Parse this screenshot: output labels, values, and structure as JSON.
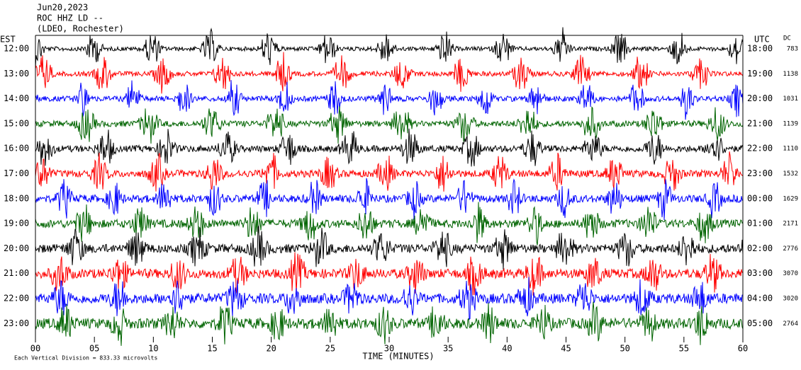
{
  "header": {
    "date": "Jun20,2023",
    "station": "ROC HHZ LD --",
    "location": "(LDEO, Rochester)"
  },
  "left_label": "EST",
  "right_label": "UTC",
  "dc_label": "DC",
  "rows": [
    {
      "est": "12:00",
      "utc": "18:00",
      "dc": 783
    },
    {
      "est": "13:00",
      "utc": "19:00",
      "dc": 1138
    },
    {
      "est": "14:00",
      "utc": "20:00",
      "dc": 1031
    },
    {
      "est": "15:00",
      "utc": "21:00",
      "dc": 1139
    },
    {
      "est": "16:00",
      "utc": "22:00",
      "dc": 1110
    },
    {
      "est": "17:00",
      "utc": "23:00",
      "dc": 1532
    },
    {
      "est": "18:00",
      "utc": "00:00",
      "dc": 1629
    },
    {
      "est": "19:00",
      "utc": "01:00",
      "dc": 2171
    },
    {
      "est": "20:00",
      "utc": "02:00",
      "dc": 2776
    },
    {
      "est": "21:00",
      "utc": "03:00",
      "dc": 3070
    },
    {
      "est": "22:00",
      "utc": "04:00",
      "dc": 3020
    },
    {
      "est": "23:00",
      "utc": "05:00",
      "dc": 2764
    }
  ],
  "x_axis": {
    "label": "TIME (MINUTES)",
    "lim": [
      0,
      60
    ],
    "ticks": [
      {
        "value": 0,
        "label": "00"
      },
      {
        "value": 5,
        "label": "05"
      },
      10,
      15,
      20,
      25,
      30,
      35,
      40,
      45,
      50,
      55,
      60
    ]
  },
  "footer": "Each Vertical Division =  833.33 microvolts",
  "trace_colors": [
    "#000000",
    "#ff0000",
    "#0000ff",
    "#006400"
  ]
}
